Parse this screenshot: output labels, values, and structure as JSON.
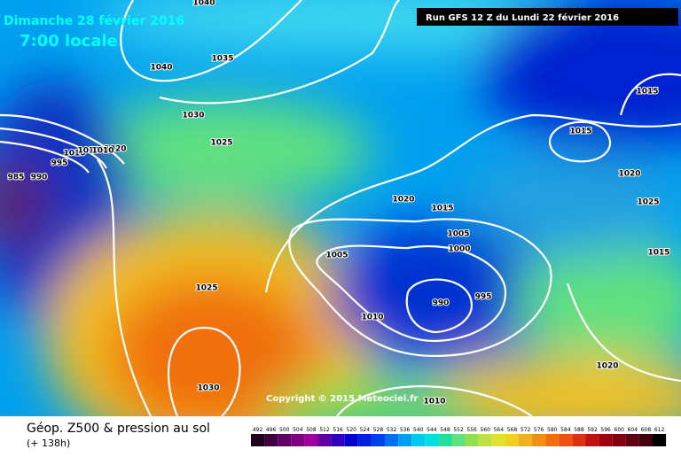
{
  "header": {
    "date": "Dimanche 28 février 2016",
    "time": "7:00 locale",
    "run": "Run GFS 12 Z du Lundi 22 février 2016"
  },
  "isobar_labels": [
    "1040",
    "1040",
    "1035",
    "1030",
    "1025",
    "1020",
    "1010",
    "1010",
    "1010",
    "995",
    "985",
    "990",
    "1020",
    "1015",
    "1005",
    "1000",
    "1005",
    "995",
    "990",
    "1010",
    "1025",
    "1030",
    "1010",
    "1020",
    "1015",
    "1015",
    "1020",
    "1025",
    "1015"
  ],
  "copyright": "Copyright © 2015 Meteociel.fr",
  "legend": {
    "title": "Géop. Z500 & pression au sol",
    "subtitle": "(+ 138h)",
    "scale": [
      "492",
      "496",
      "500",
      "504",
      "508",
      "512",
      "516",
      "520",
      "524",
      "528",
      "532",
      "536",
      "540",
      "544",
      "548",
      "552",
      "556",
      "560",
      "564",
      "568",
      "572",
      "576",
      "580",
      "584",
      "588",
      "592",
      "596",
      "600",
      "604",
      "608",
      "612"
    ]
  }
}
